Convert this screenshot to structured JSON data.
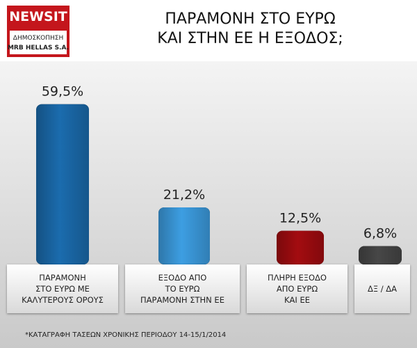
{
  "header": {
    "logo": "NEWSIT",
    "logo_sub1": "ΔΗΜΟΣΚΟΠΗΣΗ",
    "logo_sub2": "MRB HELLAS S.A."
  },
  "chart_data": {
    "type": "bar",
    "title": "ΠΑΡΑΜΟΝΗ ΣΤΟ ΕΥΡΩ\nΚΑΙ ΣΤΗΝ ΕΕ Η ΕΞΟΔΟΣ;",
    "categories": [
      "ΠΑΡΑΜΟΝΗ\nΣΤΟ ΕΥΡΩ ΜΕ\nΚΑΛΥΤΕΡΟΥΣ ΟΡΟΥΣ",
      "ΕΞΟΔΟ ΑΠΟ\nΤΟ ΕΥΡΩ\nΠΑΡΑΜΟΝΗ ΣΤΗΝ ΕΕ",
      "ΠΛΗΡΗ ΕΞΟΔΟ\nΑΠΟ ΕΥΡΩ\nΚΑΙ ΕΕ",
      "ΔΞ / ΔΑ"
    ],
    "values": [
      59.5,
      21.2,
      12.5,
      6.8
    ],
    "value_labels": [
      "59,5%",
      "21,2%",
      "12,5%",
      "6,8%"
    ],
    "colors": [
      "#1b6cae",
      "#3d9ee2",
      "#a30c10",
      "#474747"
    ],
    "footnote": "*ΚΑΤΑΓΡΑΦΗ ΤΑΣΕΩΝ ΧΡΟΝΙΚΗΣ ΠΕΡΙΟΔΟΥ 14-15/1/2014"
  }
}
